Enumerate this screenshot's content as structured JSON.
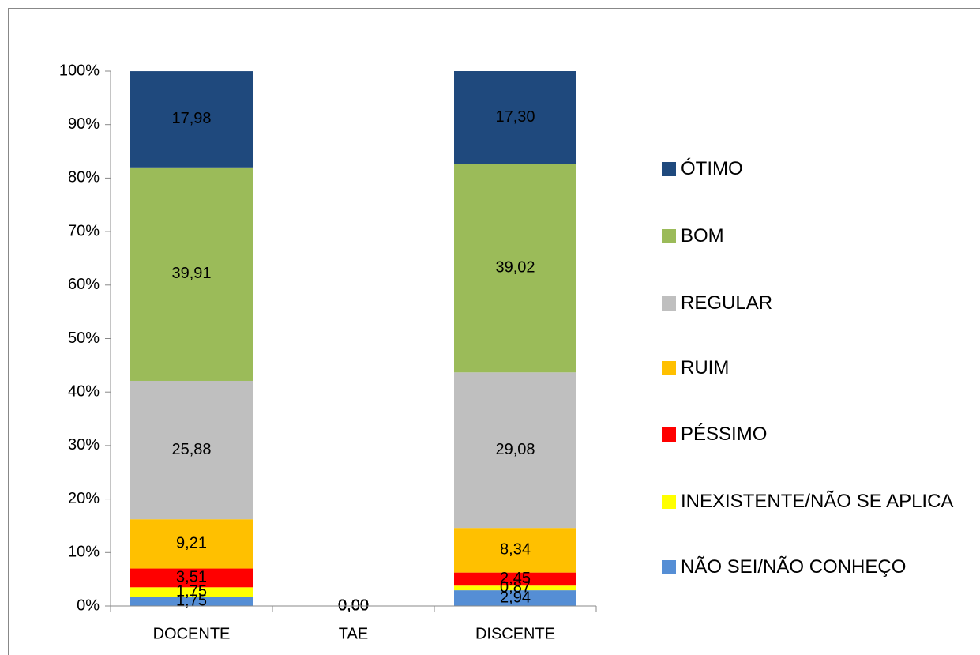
{
  "chart_data": {
    "type": "stacked_bar",
    "categories": [
      "DOCENTE",
      "TAE",
      "DISCENTE"
    ],
    "series": [
      {
        "name": "NÃO SEI/NÃO CONHEÇO",
        "color": "#558ed5",
        "values": [
          1.75,
          0,
          2.94
        ],
        "value_labels": [
          "1,75",
          "0,00",
          "2,94"
        ]
      },
      {
        "name": "INEXISTENTE/NÃO SE APLICA",
        "color": "#ffff00",
        "values": [
          1.75,
          0,
          0.87
        ],
        "value_labels": [
          "1,75",
          "0,00",
          "0,87"
        ]
      },
      {
        "name": "PÉSSIMO",
        "color": "#ff0000",
        "values": [
          3.51,
          0,
          2.45
        ],
        "value_labels": [
          "3,51",
          "0,00",
          "2,45"
        ]
      },
      {
        "name": "RUIM",
        "color": "#ffc000",
        "values": [
          9.21,
          0,
          8.34
        ],
        "value_labels": [
          "9,21",
          "0,00",
          "8,34"
        ]
      },
      {
        "name": "REGULAR",
        "color": "#bfbfbf",
        "values": [
          25.88,
          0,
          29.08
        ],
        "value_labels": [
          "25,88",
          "0,00",
          "29,08"
        ]
      },
      {
        "name": "BOM",
        "color": "#9bbb59",
        "values": [
          39.91,
          0,
          39.02
        ],
        "value_labels": [
          "39,91",
          "0,00",
          "39,02"
        ]
      },
      {
        "name": "ÓTIMO",
        "color": "#1f497d",
        "values": [
          17.98,
          0,
          17.3
        ],
        "value_labels": [
          "17,98",
          "0,00",
          "17,30"
        ]
      }
    ],
    "ylim": [
      0,
      100
    ],
    "yticks": [
      {
        "value": 0,
        "label": "0%"
      },
      {
        "value": 10,
        "label": "10%"
      },
      {
        "value": 20,
        "label": "20%"
      },
      {
        "value": 30,
        "label": "30%"
      },
      {
        "value": 40,
        "label": "40%"
      },
      {
        "value": 50,
        "label": "50%"
      },
      {
        "value": 60,
        "label": "60%"
      },
      {
        "value": 70,
        "label": "70%"
      },
      {
        "value": 80,
        "label": "80%"
      },
      {
        "value": 90,
        "label": "90%"
      },
      {
        "value": 100,
        "label": "100%"
      }
    ],
    "legend": "right",
    "grid": false
  }
}
